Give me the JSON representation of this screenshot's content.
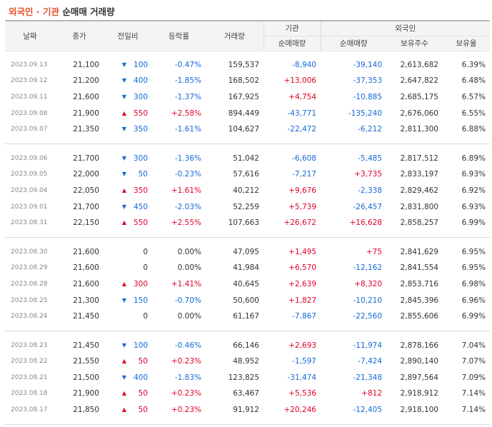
{
  "title": {
    "highlight": "외국인 · 기관",
    "rest": "순매매 거래량"
  },
  "header": {
    "date": "날짜",
    "close": "종가",
    "change": "전일비",
    "rate": "등락률",
    "volume": "거래량",
    "institution": "기관",
    "foreign": "외국인",
    "inst_net": "순매매량",
    "frgn_net": "순매매량",
    "frgn_hold": "보유주수",
    "frgn_ratio": "보유율"
  },
  "colors": {
    "up": "#e0002a",
    "down": "#1569d8",
    "accent": "#e8502b"
  },
  "icons": {
    "up": "triangle-up-icon",
    "down": "triangle-down-icon"
  },
  "groups": [
    [
      {
        "date": "2023.09.13",
        "close": "21,100",
        "dir": "down",
        "change": "100",
        "rate": "-0.47%",
        "volume": "159,537",
        "inst": "-8,940",
        "frgn": "-39,140",
        "hold": "2,613,682",
        "ratio": "6.39%"
      },
      {
        "date": "2023.09.12",
        "close": "21,200",
        "dir": "down",
        "change": "400",
        "rate": "-1.85%",
        "volume": "168,502",
        "inst": "+13,006",
        "frgn": "-37,353",
        "hold": "2,647,822",
        "ratio": "6.48%"
      },
      {
        "date": "2023.09.11",
        "close": "21,600",
        "dir": "down",
        "change": "300",
        "rate": "-1.37%",
        "volume": "167,925",
        "inst": "+4,754",
        "frgn": "-10,885",
        "hold": "2,685,175",
        "ratio": "6.57%"
      },
      {
        "date": "2023.09.08",
        "close": "21,900",
        "dir": "up",
        "change": "550",
        "rate": "+2.58%",
        "volume": "894,449",
        "inst": "-43,771",
        "frgn": "-135,240",
        "hold": "2,676,060",
        "ratio": "6.55%"
      },
      {
        "date": "2023.09.07",
        "close": "21,350",
        "dir": "down",
        "change": "350",
        "rate": "-1.61%",
        "volume": "104,627",
        "inst": "-22,472",
        "frgn": "-6,212",
        "hold": "2,811,300",
        "ratio": "6.88%"
      }
    ],
    [
      {
        "date": "2023.09.06",
        "close": "21,700",
        "dir": "down",
        "change": "300",
        "rate": "-1.36%",
        "volume": "51,042",
        "inst": "-6,608",
        "frgn": "-5,485",
        "hold": "2,817,512",
        "ratio": "6.89%"
      },
      {
        "date": "2023.09.05",
        "close": "22,000",
        "dir": "down",
        "change": "50",
        "rate": "-0.23%",
        "volume": "57,616",
        "inst": "-7,217",
        "frgn": "+3,735",
        "hold": "2,833,197",
        "ratio": "6.93%"
      },
      {
        "date": "2023.09.04",
        "close": "22,050",
        "dir": "up",
        "change": "350",
        "rate": "+1.61%",
        "volume": "40,212",
        "inst": "+9,676",
        "frgn": "-2,338",
        "hold": "2,829,462",
        "ratio": "6.92%"
      },
      {
        "date": "2023.09.01",
        "close": "21,700",
        "dir": "down",
        "change": "450",
        "rate": "-2.03%",
        "volume": "52,259",
        "inst": "+5,739",
        "frgn": "-26,457",
        "hold": "2,831,800",
        "ratio": "6.93%"
      },
      {
        "date": "2023.08.31",
        "close": "22,150",
        "dir": "up",
        "change": "550",
        "rate": "+2.55%",
        "volume": "107,663",
        "inst": "+26,672",
        "frgn": "+16,628",
        "hold": "2,858,257",
        "ratio": "6.99%"
      }
    ],
    [
      {
        "date": "2023.08.30",
        "close": "21,600",
        "dir": "flat",
        "change": "0",
        "rate": "0.00%",
        "volume": "47,095",
        "inst": "+1,495",
        "frgn": "+75",
        "hold": "2,841,629",
        "ratio": "6.95%"
      },
      {
        "date": "2023.08.29",
        "close": "21,600",
        "dir": "flat",
        "change": "0",
        "rate": "0.00%",
        "volume": "41,984",
        "inst": "+6,570",
        "frgn": "-12,162",
        "hold": "2,841,554",
        "ratio": "6.95%"
      },
      {
        "date": "2023.08.28",
        "close": "21,600",
        "dir": "up",
        "change": "300",
        "rate": "+1.41%",
        "volume": "40,645",
        "inst": "+2,639",
        "frgn": "+8,320",
        "hold": "2,853,716",
        "ratio": "6.98%"
      },
      {
        "date": "2023.08.25",
        "close": "21,300",
        "dir": "down",
        "change": "150",
        "rate": "-0.70%",
        "volume": "50,600",
        "inst": "+1,827",
        "frgn": "-10,210",
        "hold": "2,845,396",
        "ratio": "6.96%"
      },
      {
        "date": "2023.08.24",
        "close": "21,450",
        "dir": "flat",
        "change": "0",
        "rate": "0.00%",
        "volume": "61,167",
        "inst": "-7,867",
        "frgn": "-22,560",
        "hold": "2,855,606",
        "ratio": "6.99%"
      }
    ],
    [
      {
        "date": "2023.08.23",
        "close": "21,450",
        "dir": "down",
        "change": "100",
        "rate": "-0.46%",
        "volume": "66,146",
        "inst": "+2,693",
        "frgn": "-11,974",
        "hold": "2,878,166",
        "ratio": "7.04%"
      },
      {
        "date": "2023.08.22",
        "close": "21,550",
        "dir": "up",
        "change": "50",
        "rate": "+0.23%",
        "volume": "48,952",
        "inst": "-1,597",
        "frgn": "-7,424",
        "hold": "2,890,140",
        "ratio": "7.07%"
      },
      {
        "date": "2023.08.21",
        "close": "21,500",
        "dir": "down",
        "change": "400",
        "rate": "-1.83%",
        "volume": "123,825",
        "inst": "-31,474",
        "frgn": "-21,348",
        "hold": "2,897,564",
        "ratio": "7.09%"
      },
      {
        "date": "2023.08.18",
        "close": "21,900",
        "dir": "up",
        "change": "50",
        "rate": "+0.23%",
        "volume": "63,467",
        "inst": "+5,536",
        "frgn": "+812",
        "hold": "2,918,912",
        "ratio": "7.14%"
      },
      {
        "date": "2023.08.17",
        "close": "21,850",
        "dir": "up",
        "change": "50",
        "rate": "+0.23%",
        "volume": "91,912",
        "inst": "+20,246",
        "frgn": "-12,405",
        "hold": "2,918,100",
        "ratio": "7.14%"
      }
    ]
  ]
}
